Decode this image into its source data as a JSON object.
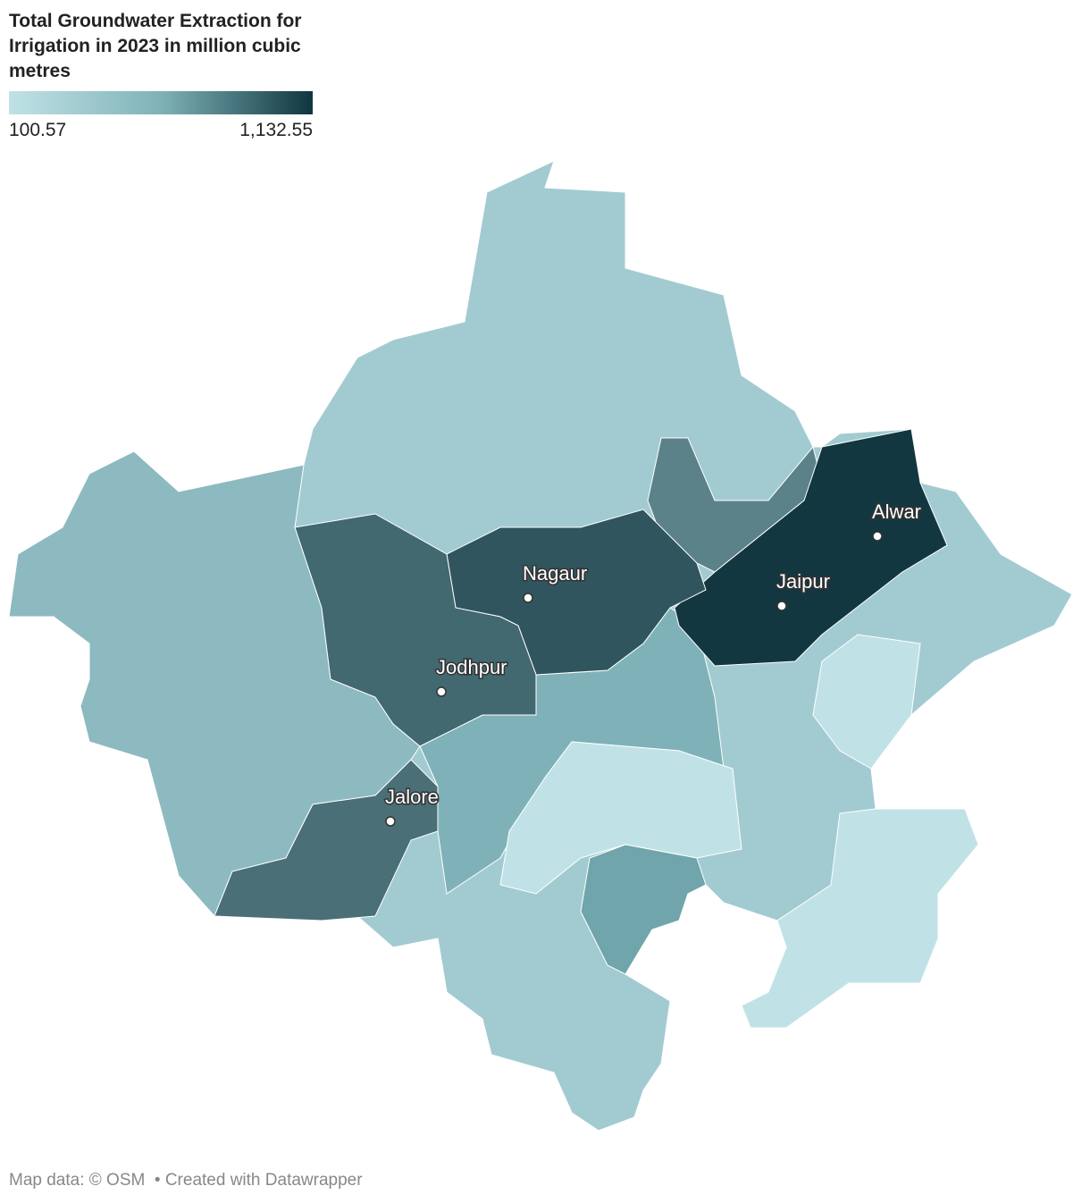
{
  "title": "Total Groundwater Extraction for Irrigation in 2023 in million cubic metres",
  "legend": {
    "min": 100.57,
    "max": {
      "value": 1132.55,
      "label": "1,132.55"
    },
    "colors": [
      "#c0e2e6",
      "#7fb2b8",
      "#0f3640"
    ]
  },
  "cities": [
    {
      "name": "Alwar"
    },
    {
      "name": "Nagaur"
    },
    {
      "name": "Jaipur"
    },
    {
      "name": "Jodhpur"
    },
    {
      "name": "Jalore"
    }
  ],
  "footer": {
    "source": "Map data: © OSM",
    "credit": "• Created with Datawrapper"
  }
}
